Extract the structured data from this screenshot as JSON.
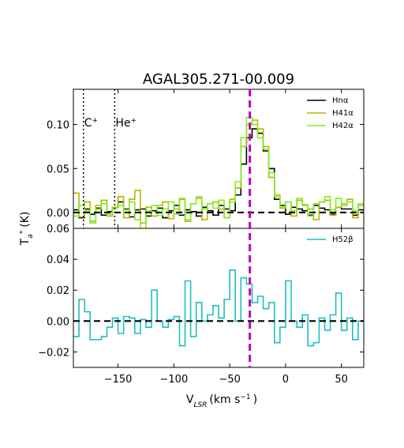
{
  "chart_data": {
    "type": "line",
    "title": "AGAL305.271-00.009",
    "xlabel": "V",
    "xlabel_sub": "LSR",
    "xlabel_units": "(km s",
    "xlabel_units_sup": "−1",
    "xlabel_close": ")",
    "ylabel": "T",
    "ylabel_sub": "a",
    "ylabel_sup": "*",
    "ylabel_units": "(K)",
    "xlim": [
      -190,
      70
    ],
    "xticks": [
      -150,
      -100,
      -50,
      0,
      50
    ],
    "xtick_labels": [
      "−150",
      "−100",
      "−50",
      "0",
      "50"
    ],
    "vline_x": -32,
    "vline_color": "#bf00bf",
    "annotations": [
      {
        "label": "C",
        "sup": "+",
        "x": -181
      },
      {
        "label": "He",
        "sup": "+",
        "x": -153
      }
    ],
    "panels": [
      {
        "ylim": [
          -0.018,
          0.14
        ],
        "yticks": [
          0.0,
          0.05,
          0.1
        ],
        "ytick_labels": [
          "0.00",
          "0.05",
          "0.10"
        ],
        "legend_position": "top-right",
        "series": [
          {
            "name": "Hnα",
            "color": "#000000",
            "x": [
              -190,
              -185,
              -180,
              -175,
              -170,
              -165,
              -160,
              -155,
              -150,
              -145,
              -140,
              -135,
              -130,
              -125,
              -120,
              -115,
              -110,
              -105,
              -100,
              -95,
              -90,
              -85,
              -80,
              -75,
              -70,
              -65,
              -60,
              -55,
              -50,
              -45,
              -40,
              -35,
              -30,
              -25,
              -20,
              -15,
              -10,
              -5,
              0,
              5,
              10,
              15,
              20,
              25,
              30,
              35,
              40,
              45,
              50,
              55,
              60,
              65
            ],
            "y": [
              0.003,
              -0.006,
              0.004,
              -0.002,
              0.005,
              -0.003,
              0.001,
              0.006,
              0.012,
              0.004,
              -0.005,
              0.003,
              0.004,
              -0.004,
              0.002,
              0.005,
              -0.006,
              0.002,
              0.008,
              -0.003,
              0.003,
              0.001,
              -0.004,
              0.006,
              0.002,
              -0.003,
              0.008,
              0.004,
              0.002,
              0.02,
              0.055,
              0.085,
              0.095,
              0.09,
              0.07,
              0.05,
              0.015,
              0.008,
              -0.002,
              0.006,
              0.004,
              0.002,
              -0.003,
              0.008,
              0.005,
              0.003,
              -0.002,
              0.006,
              0.004,
              0.004,
              -0.003,
              0.003
            ]
          },
          {
            "name": "H41α",
            "color": "#b5b500",
            "x": [
              -190,
              -185,
              -180,
              -175,
              -170,
              -165,
              -160,
              -155,
              -150,
              -145,
              -140,
              -135,
              -130,
              -125,
              -120,
              -115,
              -110,
              -105,
              -100,
              -95,
              -90,
              -85,
              -80,
              -75,
              -70,
              -65,
              -60,
              -55,
              -50,
              -45,
              -40,
              -35,
              -30,
              -25,
              -20,
              -15,
              -10,
              -5,
              0,
              5,
              10,
              15,
              20,
              25,
              30,
              35,
              40,
              45,
              50,
              55,
              60,
              65
            ],
            "y": [
              0.022,
              -0.005,
              0.012,
              -0.01,
              0.008,
              0.014,
              -0.004,
              0.006,
              0.018,
              -0.006,
              0.015,
              0.025,
              -0.012,
              0.006,
              -0.004,
              0.008,
              0.012,
              -0.007,
              0.004,
              0.015,
              -0.01,
              0.01,
              0.016,
              -0.008,
              0.01,
              0.012,
              0.004,
              -0.006,
              0.015,
              0.028,
              0.075,
              0.1,
              0.105,
              0.095,
              0.075,
              0.04,
              0.02,
              0.005,
              0.012,
              -0.004,
              0.014,
              0.008,
              0.004,
              -0.008,
              0.012,
              0.014,
              -0.003,
              0.006,
              0.01,
              0.015,
              -0.006,
              0.008
            ]
          },
          {
            "name": "H42α",
            "color": "#7fef1f",
            "x": [
              -190,
              -185,
              -180,
              -175,
              -170,
              -165,
              -160,
              -155,
              -150,
              -145,
              -140,
              -135,
              -130,
              -125,
              -120,
              -115,
              -110,
              -105,
              -100,
              -95,
              -90,
              -85,
              -80,
              -75,
              -70,
              -65,
              -60,
              -55,
              -50,
              -45,
              -40,
              -35,
              -30,
              -25,
              -20,
              -15,
              -10,
              -5,
              0,
              5,
              10,
              15,
              20,
              25,
              30,
              35,
              40,
              45,
              50,
              55,
              60,
              65
            ],
            "y": [
              -0.004,
              0.008,
              0.002,
              -0.012,
              0.004,
              0.01,
              -0.002,
              0.005,
              0.008,
              0.003,
              0.012,
              -0.008,
              -0.022,
              0.002,
              0.008,
              -0.003,
              0.004,
              0.012,
              -0.002,
              0.016,
              -0.008,
              0.01,
              0.018,
              0.004,
              0.01,
              0.005,
              0.014,
              -0.006,
              0.012,
              0.035,
              0.085,
              0.108,
              0.1,
              0.085,
              0.072,
              0.045,
              0.018,
              0.006,
              0.012,
              0.002,
              0.016,
              0.009,
              -0.004,
              0.01,
              0.012,
              0.018,
              0.003,
              0.016,
              0.008,
              0.012,
              0.002,
              0.01
            ]
          }
        ]
      },
      {
        "ylim": [
          -0.03,
          0.06
        ],
        "yticks": [
          -0.02,
          0.0,
          0.02,
          0.04,
          0.06
        ],
        "ytick_labels": [
          "−0.02",
          "0.00",
          "0.02",
          "0.04",
          "0.06"
        ],
        "legend_position": "top-right",
        "series": [
          {
            "name": "H52β",
            "color": "#1fbfbf",
            "x": [
              -190,
              -185,
              -180,
              -175,
              -170,
              -165,
              -160,
              -155,
              -150,
              -145,
              -140,
              -135,
              -130,
              -125,
              -120,
              -115,
              -110,
              -105,
              -100,
              -95,
              -90,
              -85,
              -80,
              -75,
              -70,
              -65,
              -60,
              -55,
              -50,
              -45,
              -40,
              -35,
              -30,
              -25,
              -20,
              -15,
              -10,
              -5,
              0,
              5,
              10,
              15,
              20,
              25,
              30,
              35,
              40,
              45,
              50,
              55,
              60,
              65
            ],
            "y": [
              -0.01,
              0.014,
              0.006,
              -0.012,
              -0.012,
              -0.01,
              -0.004,
              0.002,
              -0.008,
              0.003,
              0.002,
              -0.008,
              0.001,
              -0.004,
              0.02,
              0.0,
              -0.004,
              0.001,
              0.003,
              -0.016,
              0.026,
              -0.01,
              0.012,
              0.0,
              0.004,
              0.01,
              0.002,
              0.014,
              0.033,
              0.0,
              0.028,
              0.024,
              0.012,
              0.016,
              0.008,
              0.012,
              -0.014,
              -0.004,
              0.026,
              0.0,
              -0.004,
              0.004,
              -0.016,
              -0.014,
              0.002,
              -0.006,
              0.004,
              0.018,
              -0.006,
              0.002,
              -0.012,
              0.0
            ]
          }
        ]
      }
    ]
  }
}
